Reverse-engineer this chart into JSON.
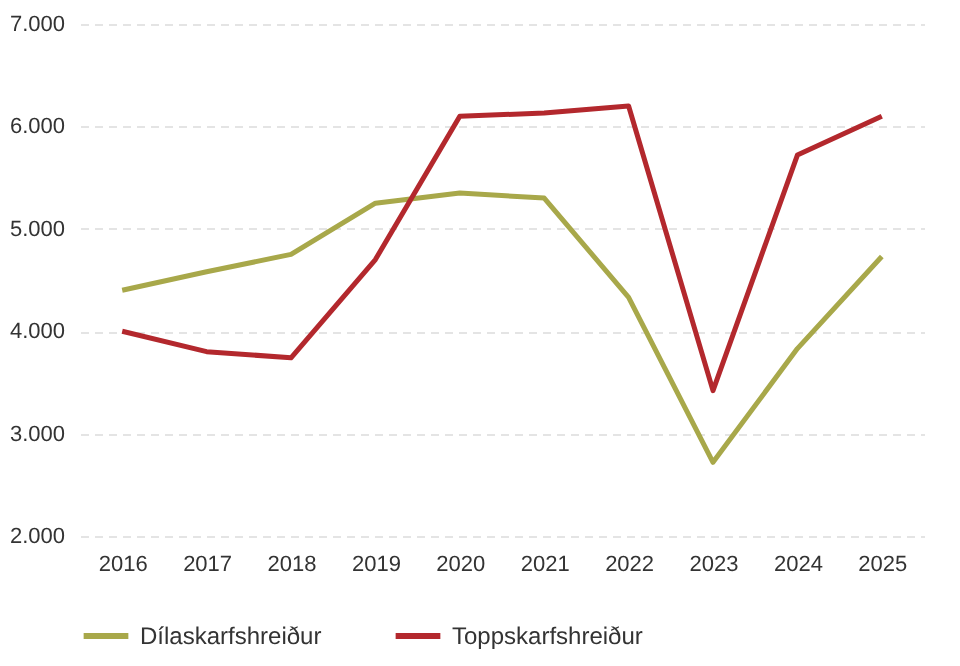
{
  "chart_data": {
    "type": "line",
    "categories": [
      "2016",
      "2017",
      "2018",
      "2019",
      "2020",
      "2021",
      "2022",
      "2023",
      "2024",
      "2025"
    ],
    "series": [
      {
        "name": "Dílaskarfshreiður",
        "color": "#a8a84a",
        "values": [
          4400,
          4580,
          4750,
          5250,
          5350,
          5300,
          4330,
          2720,
          3830,
          4730
        ]
      },
      {
        "name": "Toppskarfshreiður",
        "color": "#b3282d",
        "values": [
          4000,
          3800,
          3740,
          4700,
          6100,
          6130,
          6200,
          3420,
          5720,
          6100
        ]
      }
    ],
    "ylim": [
      2000,
      7000
    ],
    "yticks": [
      {
        "value": 2000,
        "label": "2.000"
      },
      {
        "value": 3000,
        "label": "3.000"
      },
      {
        "value": 4000,
        "label": "4.000"
      },
      {
        "value": 5000,
        "label": "5.000"
      },
      {
        "value": 6000,
        "label": "6.000"
      },
      {
        "value": 7000,
        "label": "7.000"
      }
    ],
    "grid": "y",
    "legend": "bottom",
    "line_style": "solid",
    "marker": "none"
  }
}
